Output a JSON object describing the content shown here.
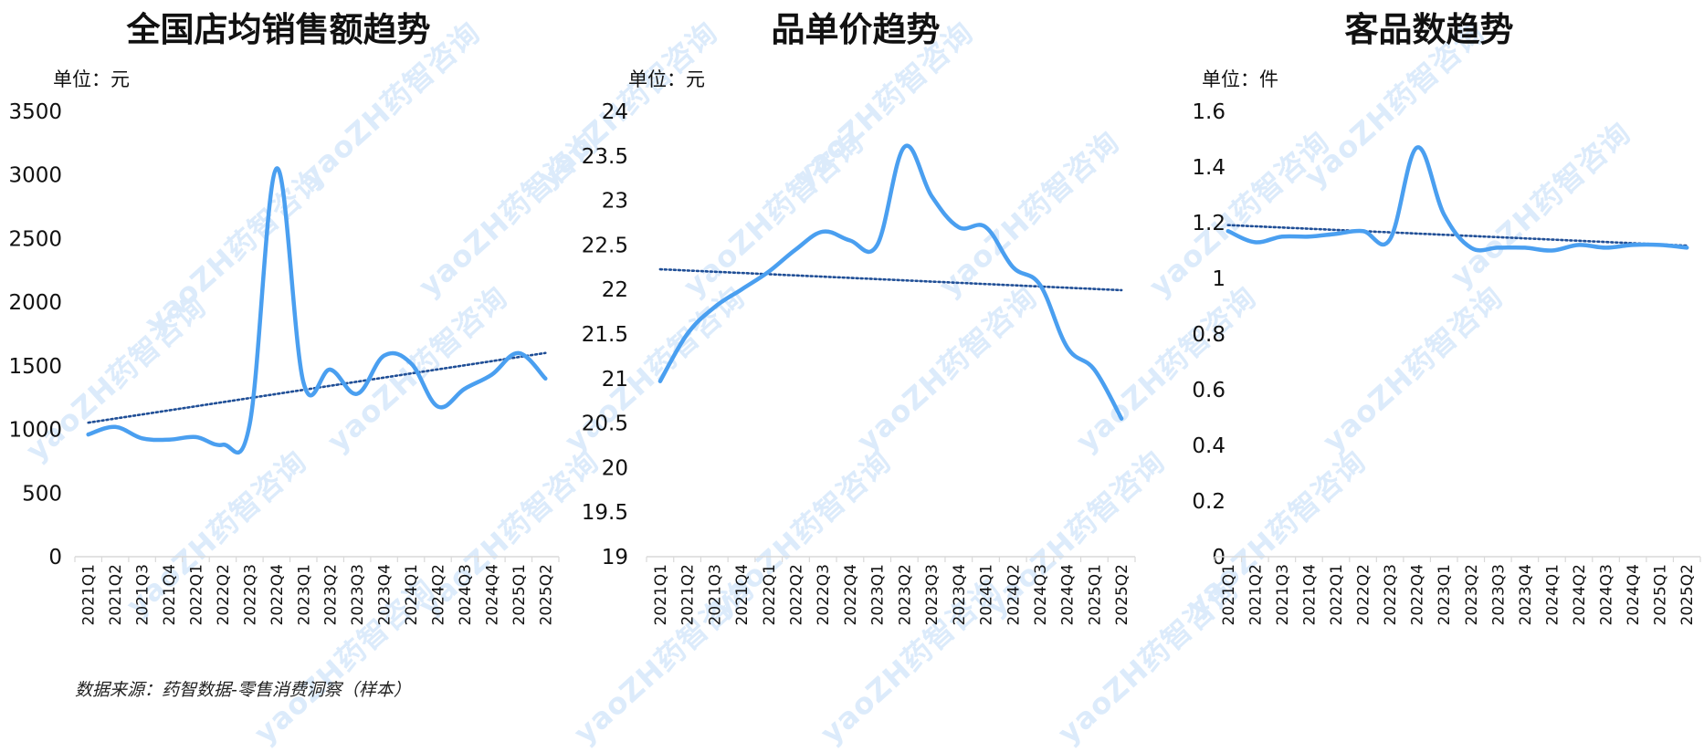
{
  "source_note": "数据来源：药智数据-零售消费洞察（样本）",
  "watermark": "yaoZH药智咨询",
  "colors": {
    "line": "#4a9ff0",
    "trend": "#1f4e96",
    "axis": "#d9d9d9",
    "text": "#111111"
  },
  "chart_data": [
    {
      "type": "line",
      "title": "全国店均销售额趋势",
      "unit_label": "单位：元",
      "categories": [
        "2021Q1",
        "2021Q2",
        "2021Q3",
        "2021Q4",
        "2022Q1",
        "2022Q2",
        "2022Q3",
        "2022Q4",
        "2023Q1",
        "2023Q2",
        "2023Q3",
        "2023Q4",
        "2024Q1",
        "2024Q2",
        "2024Q3",
        "2024Q4",
        "2025Q1",
        "2025Q2"
      ],
      "series": [
        {
          "values": [
            960,
            1020,
            930,
            920,
            940,
            880,
            1040,
            3050,
            1370,
            1470,
            1280,
            1580,
            1520,
            1180,
            1320,
            1430,
            1600,
            1400
          ]
        }
      ],
      "trendline": "linear",
      "yticks": [
        0,
        500,
        1000,
        1500,
        2000,
        2500,
        3000,
        3500
      ],
      "ylim": [
        0,
        3500
      ],
      "grid": false
    },
    {
      "type": "line",
      "title": "品单价趋势",
      "unit_label": "单位：元",
      "categories": [
        "2021Q1",
        "2021Q2",
        "2021Q3",
        "2021Q4",
        "2022Q1",
        "2022Q2",
        "2022Q3",
        "2022Q4",
        "2023Q1",
        "2023Q2",
        "2023Q3",
        "2023Q4",
        "2024Q1",
        "2024Q2",
        "2024Q3",
        "2024Q4",
        "2025Q1",
        "2025Q2"
      ],
      "series": [
        {
          "values": [
            20.97,
            21.5,
            21.8,
            22.0,
            22.2,
            22.45,
            22.65,
            22.55,
            22.5,
            23.6,
            23.05,
            22.7,
            22.7,
            22.25,
            22.05,
            21.35,
            21.1,
            20.55
          ]
        }
      ],
      "trendline": "linear",
      "yticks": [
        "19",
        "19.5",
        "20",
        "20.5",
        "21",
        "21.5",
        "22",
        "22.5",
        "23",
        "23.5",
        "24"
      ],
      "ylim": [
        19,
        24
      ],
      "grid": false
    },
    {
      "type": "line",
      "title": "客品数趋势",
      "unit_label": "单位：件",
      "categories": [
        "2021Q1",
        "2021Q2",
        "2021Q3",
        "2021Q4",
        "2022Q1",
        "2022Q2",
        "2022Q3",
        "2022Q4",
        "2023Q1",
        "2023Q2",
        "2023Q3",
        "2023Q4",
        "2024Q1",
        "2024Q2",
        "2024Q3",
        "2024Q4",
        "2025Q1",
        "2025Q2"
      ],
      "series": [
        {
          "values": [
            1.17,
            1.13,
            1.15,
            1.15,
            1.16,
            1.17,
            1.14,
            1.47,
            1.23,
            1.11,
            1.11,
            1.11,
            1.1,
            1.12,
            1.11,
            1.12,
            1.12,
            1.11
          ]
        }
      ],
      "trendline": "linear",
      "yticks": [
        "0",
        "0.2",
        "0.4",
        "0.6",
        "0.8",
        "1",
        "1.2",
        "1.4",
        "1.6"
      ],
      "ylim": [
        0,
        1.6
      ],
      "grid": false
    }
  ]
}
